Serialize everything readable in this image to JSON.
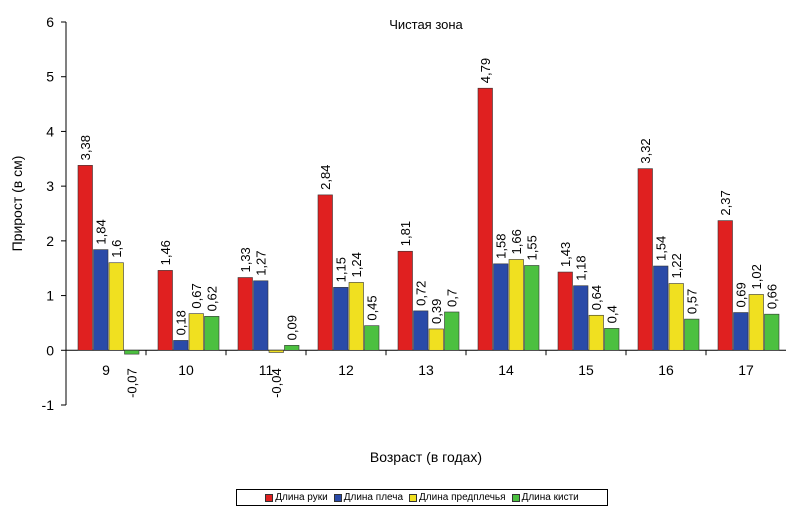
{
  "chart_data": {
    "type": "bar",
    "title": "Чистая зона",
    "xlabel": "Возраст (в годах)",
    "ylabel": "Прирост (в см)",
    "ylim": [
      -1,
      6
    ],
    "yticks": [
      "-1",
      "0",
      "1",
      "2",
      "3",
      "4",
      "5",
      "6"
    ],
    "categories": [
      "9",
      "10",
      "11",
      "12",
      "13",
      "14",
      "15",
      "16",
      "17"
    ],
    "series": [
      {
        "name": "Длина руки",
        "color": "#e02020",
        "values": [
          3.38,
          1.46,
          1.33,
          2.84,
          1.81,
          4.79,
          1.43,
          3.32,
          2.37
        ],
        "labels": [
          "3,38",
          "1,46",
          "1,33",
          "2,84",
          "1,81",
          "4,79",
          "1,43",
          "3,32",
          "2,37"
        ]
      },
      {
        "name": "Длина плеча",
        "color": "#2a4aa8",
        "values": [
          1.84,
          0.18,
          1.27,
          1.15,
          0.72,
          1.58,
          1.18,
          1.54,
          0.69
        ],
        "labels": [
          "1,84",
          "0,18",
          "1,27",
          "1,15",
          "0,72",
          "1,58",
          "1,18",
          "1,54",
          "0,69"
        ]
      },
      {
        "name": "Длина предплечья",
        "color": "#f0e020",
        "values": [
          1.6,
          0.67,
          -0.04,
          1.24,
          0.39,
          1.66,
          0.64,
          1.22,
          1.02
        ],
        "labels": [
          "1,6",
          "0,67",
          "-0,04",
          "1,24",
          "0,39",
          "1,66",
          "0,64",
          "1,22",
          "1,02"
        ]
      },
      {
        "name": "Длина кисти",
        "color": "#4cc040",
        "values": [
          -0.07,
          0.62,
          0.09,
          0.45,
          0.7,
          1.55,
          0.4,
          0.57,
          0.66
        ],
        "labels": [
          "-0,07",
          "0,62",
          "0,09",
          "0,45",
          "0,7",
          "1,55",
          "0,4",
          "0,57",
          "0,66"
        ]
      }
    ],
    "grid": false,
    "legend_position": "bottom"
  }
}
